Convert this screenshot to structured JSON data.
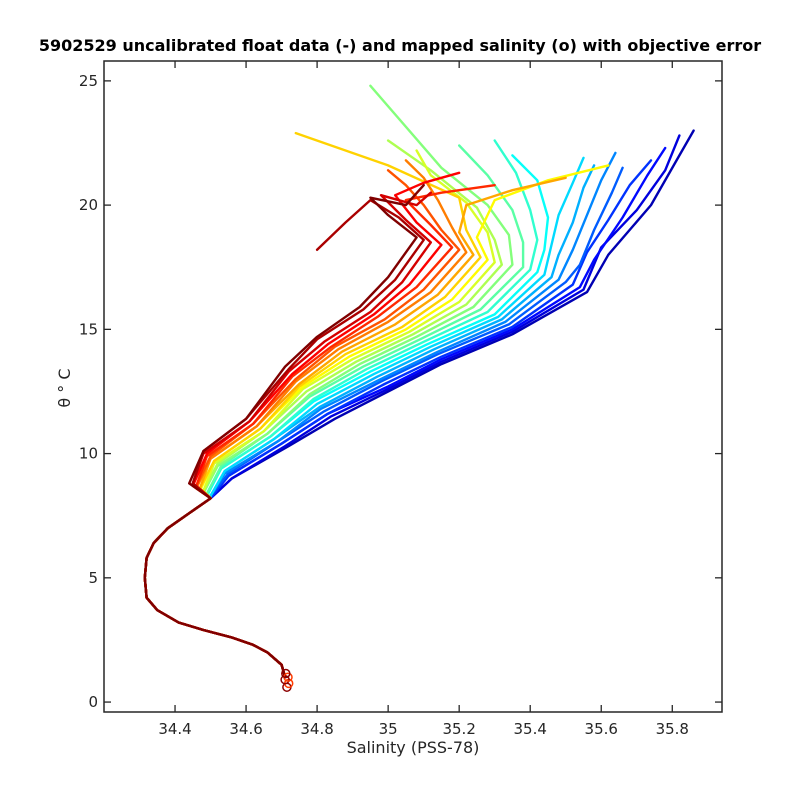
{
  "chart_data": {
    "type": "line",
    "title": "5902529 uncalibrated float data (-) and mapped salinity (o) with objective error",
    "xlabel": "Salinity (PSS-78)",
    "ylabel": "θ ° C",
    "xlim": [
      34.2,
      35.94
    ],
    "ylim": [
      -0.4,
      25.8
    ],
    "xticks": [
      34.4,
      34.6,
      34.8,
      35,
      35.2,
      35.4,
      35.6,
      35.8
    ],
    "yticks": [
      0,
      5,
      10,
      15,
      20,
      25
    ],
    "xtick_labels": [
      "34.4",
      "34.6",
      "34.8",
      "35",
      "35.2",
      "35.4",
      "35.6",
      "35.8"
    ],
    "ytick_labels": [
      "0",
      "5",
      "10",
      "15",
      "20",
      "25"
    ],
    "grid": false,
    "colormap": "jet (early profiles blue → late profiles dark red)",
    "profile_count": 24,
    "deep_curve": {
      "x": [
        34.71,
        34.7,
        34.66,
        34.62,
        34.56,
        34.48,
        34.41,
        34.35,
        34.32,
        34.315,
        34.32,
        34.34,
        34.38,
        34.44,
        34.5
      ],
      "y": [
        1.0,
        1.5,
        2.0,
        2.3,
        2.6,
        2.9,
        3.2,
        3.7,
        4.2,
        5.0,
        5.8,
        6.4,
        7.0,
        7.6,
        8.2
      ]
    },
    "series": [
      {
        "values_x": [
          34.5,
          34.56,
          34.72,
          34.85,
          35.0,
          35.15,
          35.35,
          35.56,
          35.62,
          35.74,
          35.82,
          35.86
        ],
        "values_y": [
          8.2,
          9.0,
          10.3,
          11.4,
          12.5,
          13.6,
          14.8,
          16.5,
          18.0,
          20.0,
          22.0,
          23.0
        ]
      },
      {
        "values_x": [
          34.5,
          34.56,
          34.71,
          34.84,
          35.0,
          35.15,
          35.35,
          35.55,
          35.6,
          35.7,
          35.78,
          35.82
        ],
        "values_y": [
          8.2,
          9.0,
          10.3,
          11.5,
          12.6,
          13.7,
          14.9,
          16.6,
          18.3,
          19.8,
          21.4,
          22.8
        ]
      },
      {
        "values_x": [
          34.5,
          34.55,
          34.7,
          34.83,
          35.0,
          35.15,
          35.35,
          35.54,
          35.58,
          35.66,
          35.73,
          35.78
        ],
        "values_y": [
          8.2,
          9.1,
          10.4,
          11.6,
          12.7,
          13.8,
          15.0,
          16.7,
          17.8,
          19.5,
          21.2,
          22.3
        ]
      },
      {
        "values_x": [
          34.5,
          34.55,
          34.7,
          34.83,
          34.99,
          35.15,
          35.35,
          35.52,
          35.56,
          35.62,
          35.68,
          35.74
        ],
        "values_y": [
          8.2,
          9.1,
          10.4,
          11.6,
          12.8,
          13.9,
          15.1,
          16.8,
          18.1,
          19.4,
          20.8,
          21.8
        ]
      },
      {
        "values_x": [
          34.5,
          34.55,
          34.69,
          34.82,
          34.98,
          35.14,
          35.34,
          35.5,
          35.54,
          35.58,
          35.63,
          35.66
        ],
        "values_y": [
          8.3,
          9.2,
          10.5,
          11.7,
          12.9,
          14.0,
          15.2,
          16.9,
          17.6,
          19.0,
          20.5,
          21.5
        ]
      },
      {
        "values_x": [
          34.5,
          34.54,
          34.69,
          34.81,
          34.98,
          35.14,
          35.33,
          35.48,
          35.52,
          35.56,
          35.6,
          35.64
        ],
        "values_y": [
          8.3,
          9.2,
          10.5,
          11.8,
          13.0,
          14.1,
          15.3,
          17.0,
          18.2,
          19.6,
          21.0,
          22.1
        ]
      },
      {
        "values_x": [
          34.5,
          34.54,
          34.68,
          34.81,
          34.97,
          35.13,
          35.32,
          35.46,
          35.48,
          35.52,
          35.55,
          35.58
        ],
        "values_y": [
          8.3,
          9.3,
          10.6,
          11.9,
          13.1,
          14.2,
          15.4,
          17.1,
          18.0,
          19.3,
          20.7,
          21.6
        ]
      },
      {
        "values_x": [
          34.5,
          34.54,
          34.68,
          34.8,
          34.96,
          35.12,
          35.31,
          35.44,
          35.46,
          35.48,
          35.52,
          35.55
        ],
        "values_y": [
          8.3,
          9.3,
          10.6,
          12.0,
          13.2,
          14.3,
          15.5,
          17.2,
          18.4,
          19.6,
          20.9,
          21.9
        ]
      },
      {
        "values_x": [
          34.49,
          34.53,
          34.67,
          34.79,
          34.95,
          35.11,
          35.3,
          35.42,
          35.44,
          35.45,
          35.42,
          35.35
        ],
        "values_y": [
          8.3,
          9.4,
          10.7,
          12.1,
          13.3,
          14.4,
          15.6,
          17.3,
          18.2,
          19.5,
          21.0,
          22.0
        ]
      },
      {
        "values_x": [
          34.49,
          34.53,
          34.67,
          34.79,
          34.94,
          35.1,
          35.28,
          35.4,
          35.42,
          35.4,
          35.36,
          35.3
        ],
        "values_y": [
          8.4,
          9.4,
          10.7,
          12.2,
          13.4,
          14.5,
          15.7,
          17.4,
          18.6,
          19.8,
          21.3,
          22.6
        ]
      },
      {
        "values_x": [
          34.49,
          34.53,
          34.66,
          34.78,
          34.93,
          35.09,
          35.26,
          35.38,
          35.38,
          35.35,
          35.28,
          35.2
        ],
        "values_y": [
          8.4,
          9.5,
          10.8,
          12.3,
          13.5,
          14.6,
          15.8,
          17.5,
          18.5,
          19.8,
          21.2,
          22.4
        ]
      },
      {
        "values_x": [
          34.48,
          34.52,
          34.66,
          34.78,
          34.92,
          35.08,
          35.24,
          35.35,
          35.34,
          35.28,
          35.15,
          34.95
        ],
        "values_y": [
          8.4,
          9.5,
          10.8,
          12.4,
          13.6,
          14.7,
          15.9,
          17.6,
          18.8,
          20.0,
          21.5,
          24.8
        ]
      },
      {
        "values_x": [
          34.48,
          34.52,
          34.65,
          34.77,
          34.91,
          35.07,
          35.22,
          35.32,
          35.3,
          35.25,
          35.12,
          35.0
        ],
        "values_y": [
          8.5,
          9.6,
          10.9,
          12.5,
          13.7,
          14.8,
          16.0,
          17.6,
          18.6,
          19.9,
          21.4,
          22.6
        ]
      },
      {
        "values_x": [
          34.48,
          34.51,
          34.65,
          34.76,
          34.9,
          35.06,
          35.2,
          35.3,
          35.28,
          35.22,
          35.12,
          35.08
        ],
        "values_y": [
          8.5,
          9.6,
          10.9,
          12.6,
          13.8,
          14.9,
          16.1,
          17.7,
          18.9,
          20.1,
          21.2,
          22.2
        ]
      },
      {
        "values_x": [
          34.47,
          34.51,
          34.64,
          34.76,
          34.89,
          35.05,
          35.18,
          35.28,
          35.25,
          35.3,
          35.45,
          35.62
        ],
        "values_y": [
          8.5,
          9.7,
          11.0,
          12.7,
          13.9,
          15.0,
          16.2,
          17.8,
          18.7,
          20.2,
          21.0,
          21.6
        ]
      },
      {
        "values_x": [
          34.47,
          34.51,
          34.64,
          34.75,
          34.88,
          35.04,
          35.16,
          35.26,
          35.22,
          35.2,
          35.0,
          34.74
        ],
        "values_y": [
          8.6,
          9.7,
          11.0,
          12.7,
          14.0,
          15.1,
          16.3,
          17.9,
          19.0,
          20.3,
          21.6,
          22.9
        ]
      },
      {
        "values_x": [
          34.47,
          34.5,
          34.63,
          34.75,
          34.87,
          35.02,
          35.14,
          35.24,
          35.2,
          35.22,
          35.35,
          35.5
        ],
        "values_y": [
          8.6,
          9.8,
          11.1,
          12.8,
          14.1,
          15.2,
          16.4,
          18.0,
          18.9,
          20.0,
          20.6,
          21.1
        ]
      },
      {
        "values_x": [
          34.46,
          34.5,
          34.63,
          34.74,
          34.86,
          35.0,
          35.12,
          35.22,
          35.18,
          35.14,
          35.1,
          35.05
        ],
        "values_y": [
          8.6,
          9.8,
          11.1,
          12.9,
          14.2,
          15.3,
          16.5,
          18.1,
          19.1,
          20.2,
          21.1,
          21.8
        ]
      },
      {
        "values_x": [
          34.46,
          34.5,
          34.62,
          34.74,
          34.85,
          34.99,
          35.1,
          35.2,
          35.15,
          35.1,
          35.05,
          35.0
        ],
        "values_y": [
          8.7,
          9.9,
          11.2,
          13.0,
          14.3,
          15.4,
          16.6,
          18.2,
          19.0,
          20.0,
          20.8,
          21.4
        ]
      },
      {
        "values_x": [
          34.46,
          34.49,
          34.62,
          34.73,
          34.84,
          34.97,
          35.08,
          35.18,
          35.12,
          35.05,
          35.15,
          35.3
        ],
        "values_y": [
          8.7,
          9.9,
          11.2,
          13.1,
          14.3,
          15.5,
          16.7,
          18.3,
          19.2,
          20.2,
          20.5,
          20.8
        ]
      },
      {
        "values_x": [
          34.45,
          34.49,
          34.61,
          34.73,
          34.83,
          34.96,
          35.06,
          35.15,
          35.08,
          35.02,
          35.1,
          35.2
        ],
        "values_y": [
          8.7,
          10.0,
          11.3,
          13.2,
          14.4,
          15.6,
          16.8,
          18.4,
          19.3,
          20.4,
          20.9,
          21.3
        ]
      },
      {
        "values_x": [
          34.45,
          34.48,
          34.61,
          34.72,
          34.82,
          34.95,
          35.04,
          35.12,
          35.05,
          34.98,
          35.08,
          35.12
        ],
        "values_y": [
          8.8,
          10.0,
          11.3,
          13.3,
          14.5,
          15.7,
          16.9,
          18.5,
          19.4,
          20.4,
          20.0,
          20.5
        ]
      },
      {
        "values_x": [
          34.45,
          34.48,
          34.6,
          34.72,
          34.8,
          34.93,
          35.02,
          35.1,
          35.03,
          34.95,
          34.88,
          34.8
        ],
        "values_y": [
          8.8,
          10.1,
          11.4,
          13.4,
          14.6,
          15.8,
          17.0,
          18.6,
          19.5,
          20.2,
          19.3,
          18.2
        ]
      },
      {
        "values_x": [
          34.44,
          34.48,
          34.6,
          34.71,
          34.8,
          34.92,
          35.0,
          35.08,
          35.0,
          34.95,
          35.05,
          35.1
        ],
        "values_y": [
          8.8,
          10.1,
          11.4,
          13.5,
          14.7,
          15.9,
          17.1,
          18.7,
          19.6,
          20.3,
          20.0,
          20.8
        ]
      }
    ],
    "markers": {
      "x": [
        34.715,
        34.72,
        34.71,
        34.718,
        34.712
      ],
      "y": [
        0.6,
        0.75,
        0.9,
        1.0,
        1.15
      ]
    }
  }
}
